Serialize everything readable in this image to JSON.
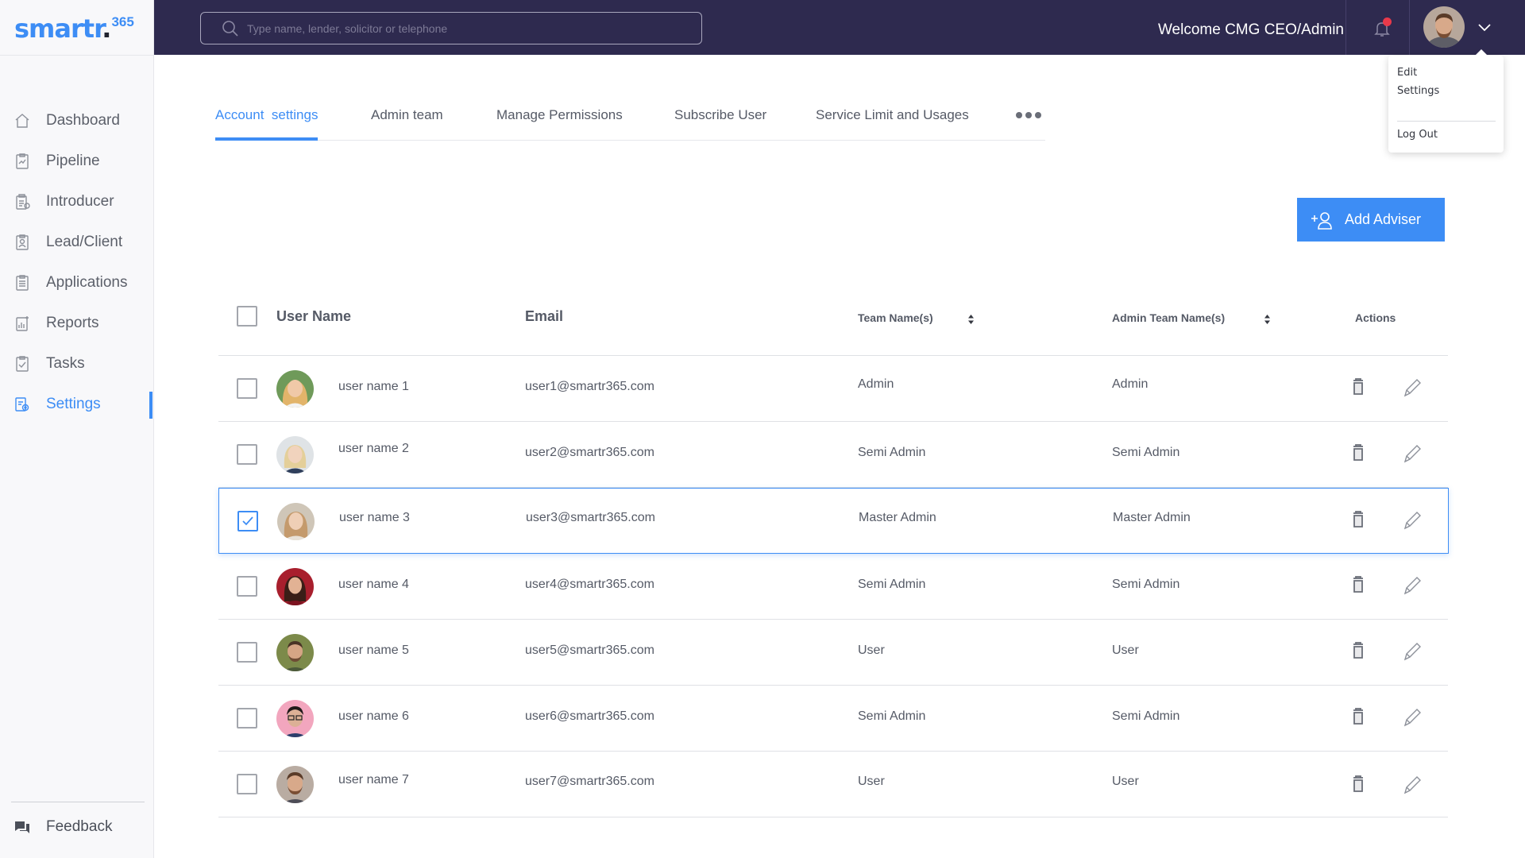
{
  "brand": {
    "logo_text": "smartr",
    "logo_dot": ".",
    "logo_sup": "365",
    "accent": "#3d8df5",
    "header_bg": "#2e2a4f"
  },
  "header": {
    "search_placeholder": "Type name, lender, solicitor or telephone",
    "welcome": "Welcome CMG CEO/Admin",
    "notification_icon": "bell-icon",
    "dropdown": {
      "edit": "Edit",
      "settings": "Settings",
      "logout": "Log Out"
    }
  },
  "sidebar": {
    "items": [
      {
        "label": "Dashboard",
        "icon": "home-icon"
      },
      {
        "label": "Pipeline",
        "icon": "pipeline-icon"
      },
      {
        "label": "Introducer",
        "icon": "introducer-icon"
      },
      {
        "label": "Lead/Client",
        "icon": "lead-client-icon"
      },
      {
        "label": "Applications",
        "icon": "applications-icon"
      },
      {
        "label": "Reports",
        "icon": "reports-icon"
      },
      {
        "label": "Tasks",
        "icon": "tasks-icon"
      },
      {
        "label": "Settings",
        "icon": "settings-icon",
        "active": true
      }
    ],
    "feedback": "Feedback"
  },
  "tabs": [
    {
      "label": "Account  settings",
      "active": true
    },
    {
      "label": "Admin team"
    },
    {
      "label": "Manage Permissions"
    },
    {
      "label": "Subscribe User"
    },
    {
      "label": "Service Limit and Usages"
    }
  ],
  "add_button": "Add Adviser",
  "table": {
    "headers": {
      "user_name": "User Name",
      "email": "Email",
      "team": "Team Name(s)",
      "admin_team": "Admin Team Name(s)",
      "actions": "Actions"
    },
    "rows": [
      {
        "name": "user name 1",
        "email": "user1@smartr365.com",
        "team": "Admin",
        "admin_team": "Admin",
        "checked": false
      },
      {
        "name": "user name 2",
        "email": "user2@smartr365.com",
        "team": "Semi Admin",
        "admin_team": "Semi Admin",
        "checked": false
      },
      {
        "name": "user name 3",
        "email": "user3@smartr365.com",
        "team": "Master Admin",
        "admin_team": "Master Admin",
        "checked": true
      },
      {
        "name": "user name 4",
        "email": "user4@smartr365.com",
        "team": "Semi Admin",
        "admin_team": "Semi Admin",
        "checked": false
      },
      {
        "name": "user name 5",
        "email": "user5@smartr365.com",
        "team": "User",
        "admin_team": "User",
        "checked": false
      },
      {
        "name": "user name 6",
        "email": "user6@smartr365.com",
        "team": "Semi Admin",
        "admin_team": "Semi Admin",
        "checked": false
      },
      {
        "name": "user name 7",
        "email": "user7@smartr365.com",
        "team": "User",
        "admin_team": "User",
        "checked": false
      }
    ]
  }
}
